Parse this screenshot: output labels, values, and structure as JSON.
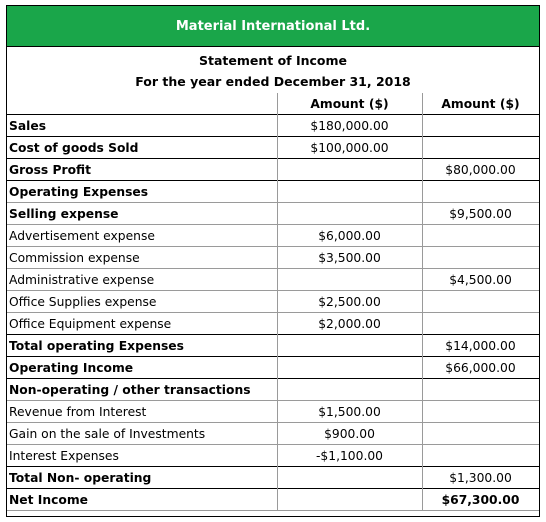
{
  "company": "Material International Ltd.",
  "statement_title": "Statement of Income",
  "period": "For the year ended December 31, 2018",
  "headers": {
    "amount1": "Amount ($)",
    "amount2": "Amount ($)"
  },
  "rows": [
    {
      "label": "Sales",
      "amt1": "$180,000.00",
      "amt2": "",
      "bold": true
    },
    {
      "label": "Cost of goods Sold",
      "amt1": "$100,000.00",
      "amt2": "",
      "bold": true
    },
    {
      "label": "Gross Profit",
      "amt1": "",
      "amt2": "$80,000.00",
      "bold": true
    },
    {
      "label": "Operating Expenses",
      "amt1": "",
      "amt2": "",
      "bold": true
    },
    {
      "label": "Selling expense",
      "amt1": "",
      "amt2": "$9,500.00",
      "bold": true
    },
    {
      "label": "Advertisement expense",
      "amt1": "$6,000.00",
      "amt2": "",
      "bold": false
    },
    {
      "label": "Commission expense",
      "amt1": "$3,500.00",
      "amt2": "",
      "bold": false
    },
    {
      "label": "Administrative expense",
      "amt1": "",
      "amt2": "$4,500.00",
      "bold": false
    },
    {
      "label": "Office Supplies expense",
      "amt1": "$2,500.00",
      "amt2": "",
      "bold": false
    },
    {
      "label": "Office Equipment expense",
      "amt1": "$2,000.00",
      "amt2": "",
      "bold": false
    },
    {
      "label": "Total operating Expenses",
      "amt1": "",
      "amt2": "$14,000.00",
      "bold": true
    },
    {
      "label": "Operating Income",
      "amt1": "",
      "amt2": "$66,000.00",
      "bold": true
    },
    {
      "label": "Non-operating / other transactions",
      "amt1": "",
      "amt2": "",
      "bold": true
    },
    {
      "label": "Revenue from Interest",
      "amt1": "$1,500.00",
      "amt2": "",
      "bold": false
    },
    {
      "label": "Gain on the sale of Investments",
      "amt1": "$900.00",
      "amt2": "",
      "bold": false
    },
    {
      "label": "Interest Expenses",
      "amt1": "-$1,100.00",
      "amt2": "",
      "bold": false
    },
    {
      "label": "Total Non- operating",
      "amt1": "",
      "amt2": "$1,300.00",
      "bold": true
    },
    {
      "label": "Net Income",
      "amt1": "",
      "amt2": "$67,300.00",
      "bold": true,
      "bold_amt": true
    }
  ]
}
